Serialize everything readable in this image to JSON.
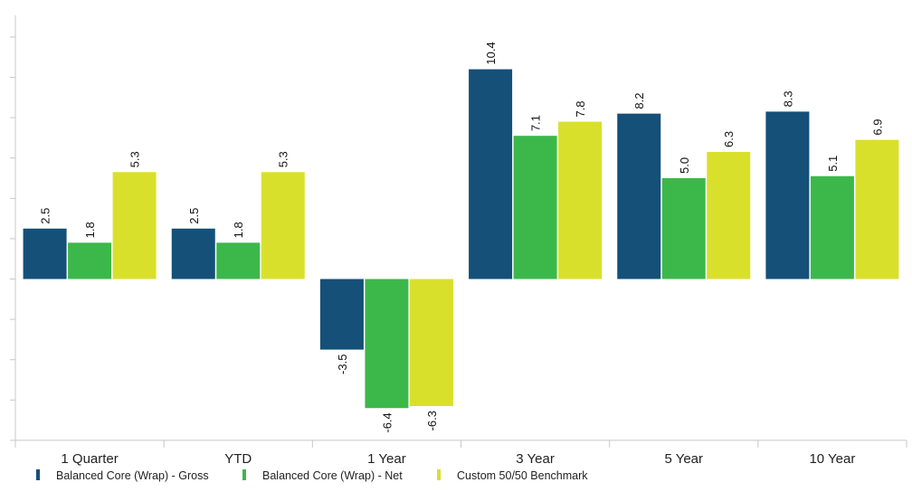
{
  "chart_data": {
    "type": "bar",
    "categories": [
      "1 Quarter",
      "YTD",
      "1 Year",
      "3 Year",
      "5 Year",
      "10 Year"
    ],
    "series": [
      {
        "name": "Balanced Core (Wrap) - Gross",
        "color": "#145078",
        "values": [
          2.5,
          2.5,
          -3.5,
          10.4,
          8.2,
          8.3
        ]
      },
      {
        "name": "Balanced Core (Wrap) - Net",
        "color": "#3cb84a",
        "values": [
          1.8,
          1.8,
          -6.4,
          7.1,
          5.0,
          5.1
        ]
      },
      {
        "name": "Custom 50/50 Benchmark",
        "color": "#d9e02c",
        "values": [
          5.3,
          5.3,
          -6.3,
          7.8,
          6.3,
          6.9
        ]
      }
    ],
    "data_labels": [
      [
        "2.5",
        "2.5",
        "-3.5",
        "10.4",
        "8.2",
        "8.3"
      ],
      [
        "1.8",
        "1.8",
        "-6.4",
        "7.1",
        "5.0",
        "5.1"
      ],
      [
        "5.3",
        "5.3",
        "-6.3",
        "7.8",
        "6.3",
        "6.9"
      ]
    ],
    "ylim": [
      -8,
      14
    ],
    "ytick_step": 2,
    "grid": false,
    "legend_position": "bottom-left"
  }
}
